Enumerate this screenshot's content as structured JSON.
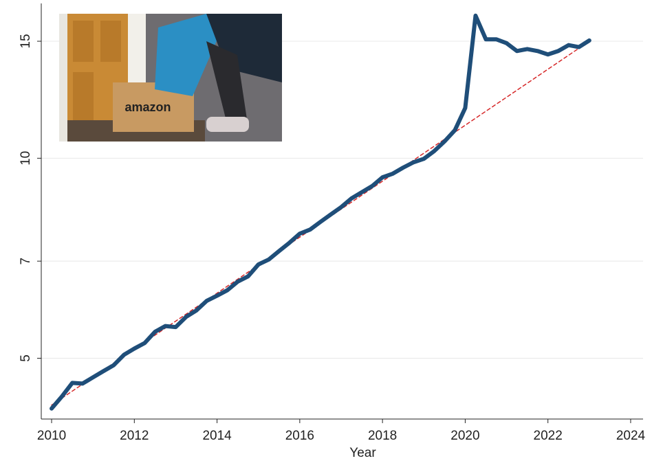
{
  "chart_data": {
    "type": "line",
    "x_label": "Year",
    "x": [
      2010,
      2010.25,
      2010.5,
      2010.75,
      2011,
      2011.25,
      2011.5,
      2011.75,
      2012,
      2012.25,
      2012.5,
      2012.75,
      2013,
      2013.25,
      2013.5,
      2013.75,
      2014,
      2014.25,
      2014.5,
      2014.75,
      2015,
      2015.25,
      2015.5,
      2015.75,
      2016,
      2016.25,
      2016.5,
      2016.75,
      2017,
      2017.25,
      2017.5,
      2017.75,
      2018,
      2018.25,
      2018.5,
      2018.75,
      2019,
      2019.25,
      2019.5,
      2019.75,
      2020,
      2020.25,
      2020.5,
      2020.75,
      2021,
      2021.25,
      2021.5,
      2021.75,
      2022,
      2022.25,
      2022.5,
      2022.75,
      2023
    ],
    "series": [
      {
        "color": "#1f4e79",
        "width": 6,
        "values": [
          4.2,
          4.38,
          4.59,
          4.58,
          4.68,
          4.78,
          4.88,
          5.06,
          5.17,
          5.27,
          5.48,
          5.59,
          5.57,
          5.77,
          5.9,
          6.1,
          6.21,
          6.33,
          6.52,
          6.64,
          6.92,
          7.04,
          7.25,
          7.46,
          7.7,
          7.81,
          8.02,
          8.23,
          8.44,
          8.7,
          8.89,
          9.08,
          9.36,
          9.48,
          9.68,
          9.86,
          9.98,
          10.25,
          10.6,
          11.02,
          11.9,
          16.39,
          15.1,
          15.1,
          14.9,
          14.5,
          14.6,
          14.5,
          14.33,
          14.5,
          14.8,
          14.7,
          15.04
        ]
      },
      {
        "color": "#d62728",
        "width": 1.5,
        "dashed": true,
        "x": [
          2010,
          2023
        ],
        "values": [
          4.25,
          15.0
        ]
      }
    ],
    "xlim": [
      2009.75,
      2024.3
    ],
    "xticks": [
      2010,
      2012,
      2014,
      2016,
      2018,
      2020,
      2022,
      2024
    ],
    "ylim": [
      4.05,
      17.1
    ],
    "yticks": [
      5,
      7,
      10,
      15
    ],
    "log_y": true,
    "grid": true
  }
}
